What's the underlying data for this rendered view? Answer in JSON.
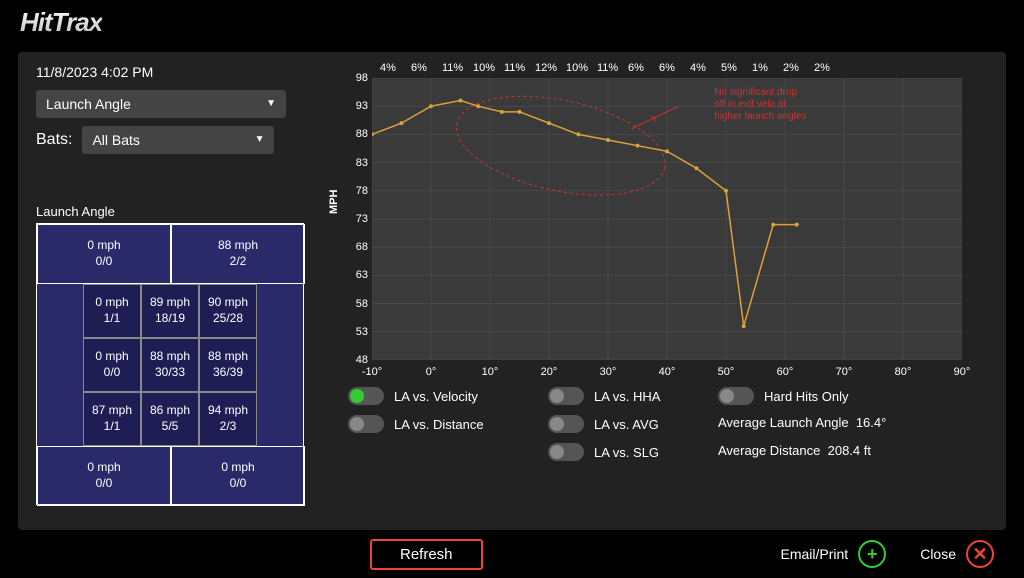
{
  "header": {
    "logo": "HitTrax"
  },
  "timestamp": "11/8/2023 4:02 PM",
  "controls": {
    "metric_dropdown": "Launch Angle",
    "bats_label": "Bats:",
    "bats_dropdown": "All Bats"
  },
  "zone": {
    "title": "Launch Angle",
    "outer": {
      "top_left": {
        "mph": "0 mph",
        "frac": "0/0"
      },
      "top_right": {
        "mph": "88 mph",
        "frac": "2/2"
      },
      "bottom_left": {
        "mph": "0 mph",
        "frac": "0/0"
      },
      "bottom_right": {
        "mph": "0 mph",
        "frac": "0/0"
      }
    },
    "inner": [
      [
        {
          "mph": "0 mph",
          "frac": "1/1"
        },
        {
          "mph": "89 mph",
          "frac": "18/19"
        },
        {
          "mph": "90 mph",
          "frac": "25/28"
        }
      ],
      [
        {
          "mph": "0 mph",
          "frac": "0/0"
        },
        {
          "mph": "88 mph",
          "frac": "30/33"
        },
        {
          "mph": "88 mph",
          "frac": "36/39"
        }
      ],
      [
        {
          "mph": "87 mph",
          "frac": "1/1"
        },
        {
          "mph": "86 mph",
          "frac": "5/5"
        },
        {
          "mph": "94 mph",
          "frac": "2/3"
        }
      ]
    ]
  },
  "chart": {
    "y_axis_label": "MPH",
    "y_ticks": [
      98,
      93,
      88,
      83,
      78,
      73,
      68,
      63,
      58,
      53,
      48
    ],
    "x_ticks": [
      -10,
      0,
      10,
      20,
      30,
      40,
      50,
      60,
      70,
      80,
      90
    ],
    "top_percent_labels": [
      "4%",
      "6%",
      "11%",
      "10%",
      "11%",
      "12%",
      "10%",
      "11%",
      "6%",
      "6%",
      "4%",
      "5%",
      "1%",
      "2%",
      "2%"
    ],
    "series_color": "#d9a23c",
    "annotation_color": "#cc3333",
    "annotation_text": "No significant drop\noff in exit velo at\nhigher launch angles",
    "background_color": "#3a3a3a",
    "grid_color": "#555555",
    "line_points": [
      {
        "x": -10,
        "y": 88
      },
      {
        "x": -5,
        "y": 90
      },
      {
        "x": 0,
        "y": 93
      },
      {
        "x": 5,
        "y": 94
      },
      {
        "x": 8,
        "y": 93
      },
      {
        "x": 12,
        "y": 92
      },
      {
        "x": 15,
        "y": 92
      },
      {
        "x": 20,
        "y": 90
      },
      {
        "x": 25,
        "y": 88
      },
      {
        "x": 30,
        "y": 87
      },
      {
        "x": 35,
        "y": 86
      },
      {
        "x": 40,
        "y": 85
      },
      {
        "x": 45,
        "y": 82
      },
      {
        "x": 50,
        "y": 78
      },
      {
        "x": 53,
        "y": 54
      },
      {
        "x": 58,
        "y": 72
      },
      {
        "x": 62,
        "y": 72
      }
    ]
  },
  "toggles": {
    "la_velocity": {
      "label": "LA vs. Velocity",
      "on": true
    },
    "la_distance": {
      "label": "LA vs. Distance",
      "on": false
    },
    "la_hha": {
      "label": "LA vs. HHA",
      "on": false
    },
    "la_avg": {
      "label": "LA vs. AVG",
      "on": false
    },
    "la_slg": {
      "label": "LA vs. SLG",
      "on": false
    },
    "hard_hits": {
      "label": "Hard Hits Only",
      "on": false
    }
  },
  "stats": {
    "avg_la_label": "Average Launch Angle",
    "avg_la_value": "16.4°",
    "avg_dist_label": "Average Distance",
    "avg_dist_value": "208.4 ft"
  },
  "footer": {
    "refresh": "Refresh",
    "email_print": "Email/Print",
    "close": "Close"
  }
}
